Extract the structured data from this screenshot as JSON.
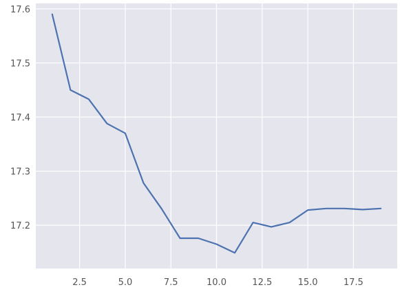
{
  "chart_data": {
    "type": "line",
    "title": "",
    "xlabel": "",
    "ylabel": "",
    "xlim": [
      0.1,
      19.9
    ],
    "ylim": [
      17.12,
      17.61
    ],
    "grid": true,
    "legend": "none",
    "x_ticks": [
      2.5,
      5.0,
      7.5,
      10.0,
      12.5,
      15.0,
      17.5
    ],
    "x_tick_labels": [
      "2.5",
      "5.0",
      "7.5",
      "10.0",
      "12.5",
      "15.0",
      "17.5"
    ],
    "y_ticks": [
      17.2,
      17.3,
      17.4,
      17.5,
      17.6
    ],
    "y_tick_labels": [
      "17.2",
      "17.3",
      "17.4",
      "17.5",
      "17.6"
    ],
    "series": [
      {
        "color": "#4c72b0",
        "x": [
          1,
          2,
          3,
          4,
          5,
          6,
          7,
          8,
          9,
          10,
          11,
          12,
          13,
          14,
          15,
          16,
          17,
          18,
          19
        ],
        "values": [
          17.59,
          17.45,
          17.433,
          17.388,
          17.37,
          17.278,
          17.23,
          17.176,
          17.176,
          17.165,
          17.149,
          17.205,
          17.197,
          17.205,
          17.228,
          17.231,
          17.231,
          17.229,
          17.231
        ]
      }
    ]
  },
  "colors": {
    "plot_background": "#e5e5ee",
    "grid": "#ffffff",
    "tick_text": "#555555"
  }
}
